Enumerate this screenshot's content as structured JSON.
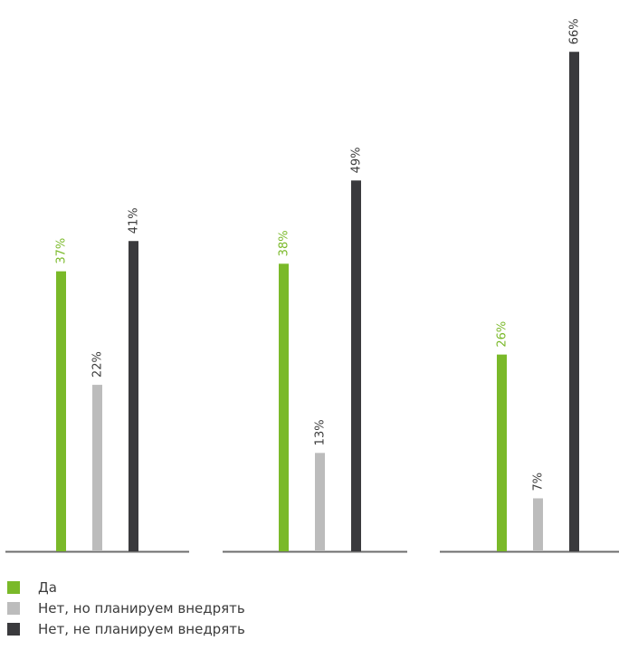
{
  "chart_data": {
    "type": "bar",
    "ylim": [
      0,
      70
    ],
    "groups": [
      {
        "values": [
          37,
          22,
          41
        ],
        "labels": [
          "37%",
          "22%",
          "41%"
        ]
      },
      {
        "values": [
          38,
          13,
          49
        ],
        "labels": [
          "38%",
          "13%",
          "49%"
        ]
      },
      {
        "values": [
          26,
          7,
          66
        ],
        "labels": [
          "26%",
          "7%",
          "66%"
        ]
      }
    ],
    "series": [
      {
        "name": "Да",
        "color": "#7ab929"
      },
      {
        "name": "Нет, но планируем внедрять",
        "color": "#bcbcbc"
      },
      {
        "name": "Нет, не планируем внедрять",
        "color": "#3a3a3d"
      }
    ],
    "axis_color": "#6e6e6e",
    "label_colors": [
      "#7ab929",
      "#3c3c3c",
      "#3c3c3c"
    ]
  }
}
